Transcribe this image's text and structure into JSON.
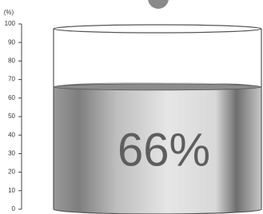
{
  "chart_data": {
    "type": "cylinder",
    "y_label": "(%)",
    "values": [
      66
    ],
    "value_labels": [
      "66%"
    ],
    "color": "#8c8c8c",
    "ylim": [
      0,
      100
    ],
    "yticks": [
      0,
      10,
      20,
      30,
      40,
      50,
      60,
      70,
      80,
      90,
      100
    ]
  }
}
